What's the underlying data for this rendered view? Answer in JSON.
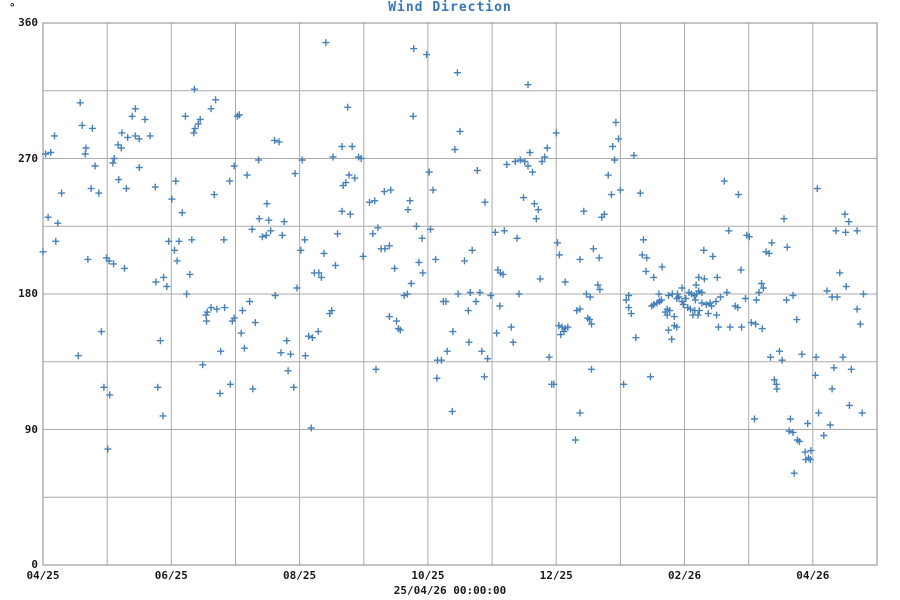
{
  "chart": {
    "title": "Wind Direction",
    "y_unit": "°",
    "x_sub_label": "25/04/26 00:00:00"
  },
  "colors": {
    "background": "#ffffff",
    "title": "#3876bb",
    "tick_label": "#1a1a1a",
    "grid": "#ababab",
    "frame": "#8a8a8a",
    "marker": "#4681b9"
  },
  "chart_data": {
    "type": "scatter",
    "title": "Wind Direction",
    "y_unit": "°",
    "x_sub_label": "25/04/26 00:00:00",
    "marker_shape": "plus",
    "marker_color": "#4681b9",
    "grid": true,
    "legend": "none",
    "x_axis": {
      "range_months": [
        0,
        13
      ],
      "gridline_every_months": 1,
      "tick_months": [
        0,
        2,
        4,
        6,
        8,
        10,
        12
      ],
      "tick_labels": [
        "04/25",
        "06/25",
        "08/25",
        "10/25",
        "12/25",
        "02/26",
        "04/26"
      ]
    },
    "y_axis": {
      "range": [
        0,
        360
      ],
      "gridline_step": 45,
      "ticks": [
        0,
        90,
        180,
        270,
        360
      ]
    },
    "points_format": [
      "months_after_04_25",
      "degrees"
    ],
    "points": [
      [
        4.41,
        347
      ],
      [
        5.78,
        343
      ],
      [
        5.98,
        339
      ],
      [
        6.46,
        327
      ],
      [
        2.36,
        316
      ],
      [
        2.69,
        309
      ],
      [
        0.58,
        307
      ],
      [
        2.62,
        303
      ],
      [
        1.44,
        303
      ],
      [
        4.75,
        304
      ],
      [
        5.77,
        298
      ],
      [
        1.39,
        298
      ],
      [
        1.59,
        296
      ],
      [
        2.22,
        298
      ],
      [
        3.03,
        298
      ],
      [
        3.06,
        299
      ],
      [
        0.61,
        292
      ],
      [
        0.77,
        290
      ],
      [
        2.45,
        296
      ],
      [
        2.42,
        293
      ],
      [
        2.37,
        290
      ],
      [
        2.35,
        287
      ],
      [
        0.18,
        285
      ],
      [
        1.23,
        287
      ],
      [
        1.44,
        285
      ],
      [
        1.32,
        284
      ],
      [
        1.5,
        283
      ],
      [
        1.67,
        285
      ],
      [
        3.61,
        282
      ],
      [
        3.68,
        281
      ],
      [
        1.17,
        279
      ],
      [
        1.22,
        277
      ],
      [
        0.67,
        277
      ],
      [
        4.66,
        278
      ],
      [
        4.82,
        278
      ],
      [
        0.04,
        273
      ],
      [
        0.12,
        274
      ],
      [
        0.66,
        273
      ],
      [
        4.52,
        271
      ],
      [
        4.92,
        271
      ],
      [
        4.96,
        270
      ],
      [
        1.11,
        270
      ],
      [
        3.36,
        269
      ],
      [
        4.04,
        269
      ],
      [
        1.09,
        267
      ],
      [
        0.81,
        265
      ],
      [
        2.98,
        265
      ],
      [
        1.5,
        264
      ],
      [
        6.02,
        261
      ],
      [
        3.18,
        259
      ],
      [
        4.77,
        259
      ],
      [
        3.93,
        260
      ],
      [
        4.86,
        257
      ],
      [
        1.18,
        256
      ],
      [
        4.72,
        254
      ],
      [
        2.07,
        255
      ],
      [
        2.91,
        255
      ],
      [
        4.68,
        252
      ],
      [
        0.75,
        250
      ],
      [
        1.3,
        250
      ],
      [
        1.75,
        251
      ],
      [
        5.42,
        249
      ],
      [
        5.32,
        248
      ],
      [
        0.29,
        247
      ],
      [
        0.87,
        247
      ],
      [
        6.08,
        249
      ],
      [
        2.67,
        246
      ],
      [
        5.09,
        241
      ],
      [
        5.17,
        242
      ],
      [
        5.72,
        242
      ],
      [
        2.01,
        243
      ],
      [
        5.69,
        236
      ],
      [
        3.49,
        240
      ],
      [
        4.66,
        235
      ],
      [
        4.79,
        233
      ],
      [
        2.17,
        234
      ],
      [
        0.08,
        231
      ],
      [
        3.37,
        230
      ],
      [
        0.23,
        227
      ],
      [
        3.52,
        229
      ],
      [
        3.76,
        228
      ],
      [
        3.26,
        223
      ],
      [
        3.42,
        218
      ],
      [
        3.48,
        219
      ],
      [
        3.55,
        222
      ],
      [
        3.73,
        219
      ],
      [
        4.59,
        220
      ],
      [
        5.22,
        224
      ],
      [
        5.14,
        220
      ],
      [
        5.82,
        225
      ],
      [
        6.04,
        223
      ],
      [
        0.2,
        215
      ],
      [
        2.82,
        216
      ],
      [
        1.96,
        215
      ],
      [
        2.12,
        215
      ],
      [
        2.32,
        216
      ],
      [
        5.91,
        217
      ],
      [
        4.08,
        216
      ],
      [
        5.4,
        212
      ],
      [
        5.33,
        210
      ],
      [
        5.27,
        210
      ],
      [
        0.0,
        208
      ],
      [
        2.05,
        209
      ],
      [
        4.02,
        209
      ],
      [
        0.7,
        203
      ],
      [
        0.99,
        204
      ],
      [
        1.03,
        202
      ],
      [
        2.09,
        202
      ],
      [
        4.38,
        207
      ],
      [
        4.56,
        199
      ],
      [
        4.99,
        205
      ],
      [
        1.1,
        200
      ],
      [
        1.27,
        197
      ],
      [
        4.23,
        194
      ],
      [
        4.3,
        194
      ],
      [
        4.34,
        191
      ],
      [
        2.29,
        193
      ],
      [
        5.48,
        197
      ],
      [
        5.86,
        201
      ],
      [
        6.12,
        203
      ],
      [
        5.92,
        194
      ],
      [
        1.76,
        188
      ],
      [
        1.88,
        191
      ],
      [
        1.93,
        185
      ],
      [
        5.74,
        187
      ],
      [
        2.24,
        180
      ],
      [
        3.96,
        184
      ],
      [
        3.62,
        179
      ],
      [
        5.63,
        179
      ],
      [
        5.68,
        180
      ],
      [
        6.24,
        175
      ],
      [
        6.28,
        175
      ],
      [
        3.22,
        175
      ],
      [
        2.62,
        171
      ],
      [
        2.71,
        170
      ],
      [
        2.83,
        171
      ],
      [
        2.56,
        168
      ],
      [
        2.54,
        166
      ],
      [
        2.55,
        162
      ],
      [
        2.95,
        162
      ],
      [
        2.98,
        164
      ],
      [
        3.11,
        169
      ],
      [
        3.31,
        161
      ],
      [
        3.09,
        154
      ],
      [
        3.14,
        144
      ],
      [
        3.8,
        149
      ],
      [
        3.71,
        141
      ],
      [
        3.86,
        140
      ],
      [
        4.14,
        152
      ],
      [
        4.2,
        151
      ],
      [
        4.29,
        155
      ],
      [
        4.47,
        167
      ],
      [
        4.5,
        169
      ],
      [
        4.09,
        139
      ],
      [
        1.83,
        149
      ],
      [
        0.55,
        139
      ],
      [
        0.91,
        155
      ],
      [
        2.77,
        142
      ],
      [
        2.49,
        133
      ],
      [
        3.27,
        117
      ],
      [
        2.92,
        120
      ],
      [
        2.76,
        114
      ],
      [
        3.82,
        129
      ],
      [
        3.91,
        118
      ],
      [
        1.79,
        118
      ],
      [
        0.95,
        118
      ],
      [
        1.04,
        113
      ],
      [
        1.87,
        99
      ],
      [
        4.18,
        91
      ],
      [
        5.19,
        130
      ],
      [
        5.4,
        165
      ],
      [
        5.51,
        162
      ],
      [
        5.54,
        157
      ],
      [
        5.57,
        156
      ],
      [
        6.14,
        124
      ],
      [
        6.15,
        136
      ],
      [
        6.21,
        136
      ],
      [
        6.3,
        142
      ],
      [
        1.01,
        77
      ],
      [
        6.38,
        102
      ],
      [
        6.39,
        155
      ],
      [
        7.56,
        319
      ],
      [
        8.93,
        294
      ],
      [
        6.5,
        288
      ],
      [
        8.0,
        287
      ],
      [
        8.97,
        283
      ],
      [
        6.42,
        276
      ],
      [
        8.88,
        278
      ],
      [
        7.86,
        277
      ],
      [
        7.59,
        274
      ],
      [
        7.82,
        271
      ],
      [
        9.21,
        272
      ],
      [
        8.91,
        269
      ],
      [
        7.36,
        268
      ],
      [
        7.44,
        269
      ],
      [
        7.51,
        268
      ],
      [
        7.23,
        266
      ],
      [
        7.56,
        265
      ],
      [
        7.78,
        268
      ],
      [
        6.77,
        262
      ],
      [
        7.63,
        261
      ],
      [
        8.81,
        259
      ],
      [
        10.62,
        255
      ],
      [
        6.89,
        241
      ],
      [
        7.49,
        244
      ],
      [
        10.84,
        246
      ],
      [
        12.07,
        250
      ],
      [
        9.0,
        249
      ],
      [
        8.86,
        246
      ],
      [
        9.31,
        247
      ],
      [
        7.66,
        240
      ],
      [
        7.72,
        236
      ],
      [
        8.43,
        235
      ],
      [
        7.69,
        230
      ],
      [
        8.71,
        231
      ],
      [
        8.75,
        233
      ],
      [
        11.55,
        230
      ],
      [
        12.5,
        233
      ],
      [
        12.56,
        228
      ],
      [
        10.69,
        222
      ],
      [
        10.97,
        219
      ],
      [
        11.01,
        218
      ],
      [
        7.05,
        221
      ],
      [
        7.19,
        222
      ],
      [
        7.39,
        217
      ],
      [
        11.36,
        214
      ],
      [
        11.6,
        211
      ],
      [
        11.27,
        208
      ],
      [
        11.32,
        207
      ],
      [
        12.36,
        222
      ],
      [
        12.51,
        221
      ],
      [
        12.69,
        222
      ],
      [
        8.02,
        214
      ],
      [
        8.05,
        206
      ],
      [
        9.36,
        216
      ],
      [
        8.58,
        210
      ],
      [
        6.69,
        209
      ],
      [
        6.57,
        202
      ],
      [
        8.37,
        203
      ],
      [
        8.67,
        204
      ],
      [
        9.34,
        206
      ],
      [
        9.41,
        204
      ],
      [
        10.3,
        209
      ],
      [
        10.44,
        205
      ],
      [
        10.88,
        196
      ],
      [
        9.4,
        195
      ],
      [
        9.52,
        191
      ],
      [
        9.65,
        198
      ],
      [
        7.09,
        196
      ],
      [
        7.13,
        194
      ],
      [
        7.17,
        193
      ],
      [
        7.75,
        190
      ],
      [
        8.14,
        188
      ],
      [
        10.22,
        191
      ],
      [
        10.31,
        190
      ],
      [
        10.51,
        191
      ],
      [
        12.42,
        194
      ],
      [
        8.65,
        186
      ],
      [
        8.68,
        183
      ],
      [
        11.2,
        187
      ],
      [
        11.23,
        184
      ],
      [
        9.96,
        184
      ],
      [
        10.18,
        186
      ],
      [
        10.27,
        181
      ],
      [
        9.89,
        180
      ],
      [
        9.75,
        179
      ],
      [
        8.47,
        180
      ],
      [
        8.53,
        178
      ],
      [
        12.22,
        182
      ],
      [
        12.3,
        178
      ],
      [
        12.52,
        185
      ],
      [
        6.47,
        180
      ],
      [
        6.66,
        181
      ],
      [
        6.81,
        181
      ],
      [
        6.98,
        179
      ],
      [
        7.42,
        180
      ],
      [
        9.13,
        179
      ],
      [
        11.69,
        179
      ],
      [
        12.79,
        180
      ],
      [
        6.75,
        175
      ],
      [
        6.63,
        169
      ],
      [
        7.12,
        172
      ],
      [
        7.3,
        158
      ],
      [
        7.07,
        154
      ],
      [
        7.33,
        148
      ],
      [
        6.64,
        148
      ],
      [
        6.84,
        142
      ],
      [
        6.93,
        137
      ],
      [
        6.88,
        125
      ],
      [
        7.89,
        138
      ],
      [
        7.93,
        120
      ],
      [
        7.96,
        120
      ],
      [
        8.04,
        159
      ],
      [
        8.09,
        158
      ],
      [
        8.14,
        157
      ],
      [
        8.18,
        158
      ],
      [
        8.12,
        155
      ],
      [
        8.07,
        153
      ],
      [
        8.32,
        169
      ],
      [
        8.37,
        170
      ],
      [
        8.49,
        164
      ],
      [
        8.52,
        163
      ],
      [
        8.55,
        160
      ],
      [
        8.55,
        130
      ],
      [
        8.37,
        101
      ],
      [
        8.3,
        83
      ],
      [
        9.09,
        176
      ],
      [
        9.13,
        171
      ],
      [
        9.17,
        167
      ],
      [
        9.24,
        151
      ],
      [
        9.05,
        120
      ],
      [
        9.47,
        125
      ],
      [
        9.49,
        172
      ],
      [
        9.52,
        173
      ],
      [
        9.57,
        174
      ],
      [
        9.61,
        175
      ],
      [
        9.64,
        176
      ],
      [
        9.6,
        180
      ],
      [
        9.81,
        180
      ],
      [
        9.7,
        168
      ],
      [
        9.73,
        170
      ],
      [
        9.73,
        166
      ],
      [
        9.77,
        169
      ],
      [
        9.84,
        165
      ],
      [
        9.84,
        159
      ],
      [
        9.88,
        158
      ],
      [
        9.75,
        156
      ],
      [
        9.8,
        150
      ],
      [
        9.88,
        177
      ],
      [
        9.91,
        178
      ],
      [
        9.96,
        175
      ],
      [
        9.98,
        173
      ],
      [
        10.02,
        177
      ],
      [
        10.07,
        181
      ],
      [
        10.11,
        180
      ],
      [
        10.15,
        179
      ],
      [
        10.19,
        180
      ],
      [
        10.22,
        182
      ],
      [
        10.05,
        171
      ],
      [
        10.09,
        170
      ],
      [
        10.16,
        169
      ],
      [
        10.23,
        169
      ],
      [
        10.13,
        166
      ],
      [
        10.21,
        166
      ],
      [
        10.17,
        176
      ],
      [
        10.27,
        174
      ],
      [
        10.34,
        173
      ],
      [
        10.42,
        172
      ],
      [
        10.4,
        174
      ],
      [
        10.37,
        167
      ],
      [
        10.49,
        175
      ],
      [
        10.5,
        166
      ],
      [
        10.53,
        158
      ],
      [
        10.71,
        158
      ],
      [
        10.89,
        158
      ],
      [
        10.56,
        178
      ],
      [
        10.66,
        181
      ],
      [
        10.79,
        172
      ],
      [
        10.83,
        171
      ],
      [
        10.95,
        177
      ],
      [
        11.12,
        176
      ],
      [
        11.16,
        181
      ],
      [
        11.21,
        157
      ],
      [
        11.04,
        161
      ],
      [
        11.11,
        160
      ],
      [
        11.34,
        138
      ],
      [
        11.48,
        142
      ],
      [
        11.52,
        136
      ],
      [
        11.59,
        176
      ],
      [
        11.75,
        163
      ],
      [
        11.83,
        140
      ],
      [
        11.4,
        123
      ],
      [
        11.43,
        120
      ],
      [
        11.44,
        117
      ],
      [
        11.09,
        97
      ],
      [
        11.65,
        97
      ],
      [
        11.63,
        89
      ],
      [
        11.69,
        88
      ],
      [
        11.76,
        83
      ],
      [
        11.79,
        82
      ],
      [
        11.88,
        75
      ],
      [
        11.97,
        76
      ],
      [
        11.93,
        71
      ],
      [
        11.89,
        70
      ],
      [
        11.96,
        70
      ],
      [
        11.71,
        61
      ],
      [
        11.92,
        94
      ],
      [
        12.17,
        86
      ],
      [
        12.09,
        101
      ],
      [
        12.27,
        93
      ],
      [
        12.04,
        126
      ],
      [
        12.3,
        117
      ],
      [
        12.05,
        138
      ],
      [
        12.33,
        131
      ],
      [
        12.47,
        138
      ],
      [
        12.57,
        106
      ],
      [
        12.77,
        101
      ],
      [
        12.6,
        130
      ],
      [
        12.69,
        170
      ],
      [
        12.74,
        160
      ],
      [
        12.38,
        178
      ]
    ]
  }
}
